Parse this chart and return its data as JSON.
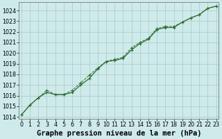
{
  "title": "Graphe pression niveau de la mer (hPa)",
  "x_labels": [
    "0",
    "1",
    "2",
    "3",
    "4",
    "5",
    "6",
    "7",
    "8",
    "9",
    "10",
    "11",
    "12",
    "13",
    "14",
    "15",
    "16",
    "17",
    "18",
    "19",
    "20",
    "21",
    "22",
    "23"
  ],
  "yticks": [
    1014,
    1015,
    1016,
    1017,
    1018,
    1019,
    1020,
    1021,
    1022,
    1023,
    1024
  ],
  "line1_x": [
    0,
    1,
    2,
    3,
    4,
    5,
    6,
    7,
    8,
    9,
    10,
    11,
    12,
    13,
    14,
    15,
    16,
    17,
    18,
    19,
    20,
    21,
    22,
    23
  ],
  "line1_y": [
    1014.2,
    1015.1,
    1015.8,
    1016.3,
    1016.1,
    1016.1,
    1016.3,
    1017.0,
    1017.6,
    1018.5,
    1019.2,
    1019.3,
    1019.5,
    1020.3,
    1020.9,
    1021.3,
    1022.2,
    1022.4,
    1022.4,
    1022.9,
    1023.3,
    1023.6,
    1024.2,
    1024.4
  ],
  "line2_x": [
    0,
    1,
    2,
    3,
    4,
    5,
    6,
    7,
    8,
    9,
    10,
    11,
    12,
    13,
    14,
    15,
    16,
    17,
    18,
    19,
    20,
    21,
    22,
    23
  ],
  "line2_y": [
    1014.2,
    1015.1,
    1015.8,
    1016.5,
    1016.1,
    1016.1,
    1016.5,
    1017.2,
    1017.9,
    1018.6,
    1019.2,
    1019.4,
    1019.6,
    1020.5,
    1021.0,
    1021.4,
    1022.3,
    1022.5,
    1022.5,
    1022.9,
    1023.3,
    1023.6,
    1024.2,
    1024.4
  ],
  "line_color": "#2d6b2d",
  "bg_color": "#ceeaea",
  "grid_color": "#aac8c8",
  "title_fontsize": 7.5,
  "tick_fontsize": 5.8
}
